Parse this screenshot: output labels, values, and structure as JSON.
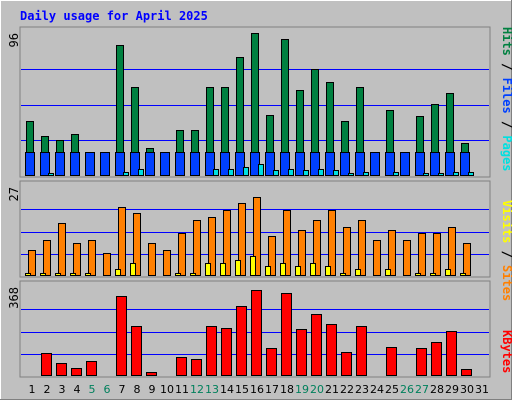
{
  "chart_data": {
    "type": "bar",
    "title": "Daily usage for April 2025",
    "categories": [
      "1",
      "2",
      "3",
      "4",
      "5",
      "6",
      "7",
      "8",
      "9",
      "10",
      "11",
      "12",
      "13",
      "14",
      "15",
      "16",
      "17",
      "18",
      "19",
      "20",
      "21",
      "22",
      "23",
      "24",
      "25",
      "26",
      "27",
      "28",
      "29",
      "30",
      "31"
    ],
    "weekend_days": [
      "5",
      "6",
      "12",
      "13",
      "19",
      "20",
      "26",
      "27"
    ],
    "panels": [
      {
        "id": "hits_files_pages",
        "max_label": "96",
        "ymax": 96,
        "legend": [
          "Pages",
          "Files",
          "Hits"
        ],
        "series": [
          {
            "name": "Hits",
            "color": "#008040",
            "values": [
              37,
              27,
              24,
              28,
              16,
              0,
              88,
              60,
              19,
              16,
              31,
              31,
              60,
              60,
              80,
              96,
              41,
              92,
              58,
              72,
              63,
              37,
              60,
              16,
              44,
              16,
              40,
              48,
              56,
              22,
              0
            ]
          },
          {
            "name": "Files",
            "color": "#0040ff",
            "values": [
              16,
              16,
              16,
              16,
              16,
              16,
              16,
              16,
              16,
              16,
              16,
              16,
              16,
              16,
              16,
              16,
              16,
              16,
              16,
              16,
              16,
              16,
              16,
              16,
              16,
              16,
              16,
              16,
              16,
              16,
              0
            ]
          },
          {
            "name": "Pages",
            "color": "#00e0e0",
            "values": [
              1,
              2,
              1,
              1,
              1,
              0,
              3,
              5,
              0,
              0,
              1,
              1,
              5,
              5,
              6,
              8,
              4,
              5,
              4,
              5,
              4,
              2,
              3,
              0,
              3,
              0,
              2,
              2,
              3,
              3,
              0
            ]
          }
        ]
      },
      {
        "id": "visits_sites",
        "max_label": "27",
        "ymax": 27,
        "legend": [
          "Sites",
          "Visits"
        ],
        "series": [
          {
            "name": "Visits",
            "color": "#ff8000",
            "values": [
              8,
              11,
              16,
              10,
              11,
              7,
              21,
              19,
              10,
              8,
              13,
              17,
              18,
              20,
              22,
              24,
              12,
              20,
              14,
              17,
              20,
              15,
              17,
              11,
              14,
              11,
              13,
              13,
              15,
              10,
              0
            ]
          },
          {
            "name": "Sites",
            "color": "#ffff00",
            "values": [
              1,
              1,
              1,
              1,
              1,
              0,
              2,
              4,
              0,
              0,
              1,
              1,
              4,
              4,
              5,
              6,
              3,
              4,
              3,
              4,
              3,
              1,
              2,
              0,
              2,
              0,
              1,
              1,
              2,
              1,
              0
            ]
          }
        ]
      },
      {
        "id": "kbytes",
        "max_label": "368",
        "ymax": 368,
        "legend": [
          "KBytes"
        ],
        "series": [
          {
            "name": "KBytes",
            "color": "#ff0000",
            "values": [
              5,
              96,
              52,
              35,
              60,
              3,
              330,
              205,
              17,
              5,
              80,
              70,
              205,
              200,
              290,
              355,
              115,
              345,
              195,
              255,
              215,
              100,
              205,
              3,
              120,
              3,
              115,
              140,
              185,
              30,
              0
            ]
          }
        ]
      }
    ],
    "colors": {
      "background": "#c0c0c0",
      "title": "#0000ff",
      "frame_light": "#ffffff",
      "frame_dark": "#808080",
      "grid": "#0000ff",
      "weekday_label": "#000000",
      "weekend_label": "#00805c"
    }
  }
}
